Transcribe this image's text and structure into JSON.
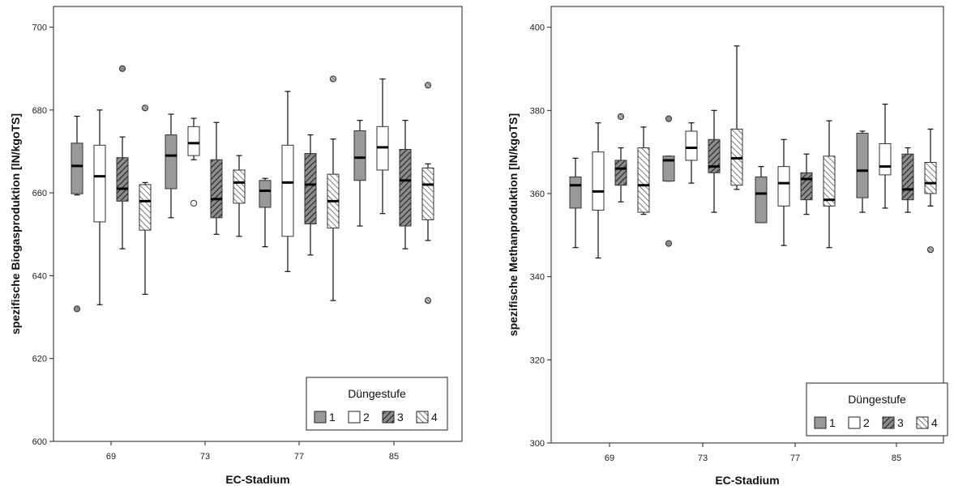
{
  "chart_data": [
    {
      "type": "boxplot",
      "xlabel": "EC-Stadium",
      "ylabel": "spezifische Biogasproduktion [lN/kgoTS]",
      "ylim": [
        600,
        705
      ],
      "yticks": [
        600,
        620,
        640,
        660,
        680,
        700
      ],
      "categories": [
        "69",
        "73",
        "77",
        "85"
      ],
      "legend": {
        "title": "Düngestufe",
        "position": "bottom-right",
        "entries": [
          "1",
          "2",
          "3",
          "4"
        ]
      },
      "series": [
        {
          "name": "1",
          "boxes": [
            {
              "min": 659.5,
              "q1": 659.8,
              "median": 666.5,
              "q3": 672,
              "max": 678.5,
              "outliers": [
                {
                  "v": 632,
                  "shape": "filled"
                }
              ]
            },
            {
              "min": 654,
              "q1": 661,
              "median": 669,
              "q3": 674,
              "max": 679,
              "outliers": []
            },
            {
              "min": 647,
              "q1": 656.5,
              "median": 660.5,
              "q3": 663,
              "max": 663.5,
              "outliers": []
            },
            {
              "min": 652,
              "q1": 663,
              "median": 668.5,
              "q3": 675,
              "max": 677.5,
              "outliers": []
            }
          ]
        },
        {
          "name": "2",
          "boxes": [
            {
              "min": 633,
              "q1": 653,
              "median": 664,
              "q3": 671.5,
              "max": 680,
              "outliers": []
            },
            {
              "min": 668,
              "q1": 669,
              "median": 672,
              "q3": 676,
              "max": 678,
              "outliers": [
                {
                  "v": 657.5,
                  "shape": "open"
                }
              ]
            },
            {
              "min": 641,
              "q1": 649.5,
              "median": 662.5,
              "q3": 671.5,
              "max": 684.5,
              "outliers": []
            },
            {
              "min": 655,
              "q1": 665.5,
              "median": 671,
              "q3": 676,
              "max": 687.5,
              "outliers": []
            }
          ]
        },
        {
          "name": "3",
          "boxes": [
            {
              "min": 646.5,
              "q1": 658,
              "median": 661,
              "q3": 668.5,
              "max": 673.5,
              "outliers": [
                {
                  "v": 690,
                  "shape": "filled"
                }
              ]
            },
            {
              "min": 650,
              "q1": 654,
              "median": 658.5,
              "q3": 668,
              "max": 677,
              "outliers": []
            },
            {
              "min": 645,
              "q1": 652.5,
              "median": 662,
              "q3": 669.5,
              "max": 674,
              "outliers": []
            },
            {
              "min": 646.5,
              "q1": 652,
              "median": 663,
              "q3": 670.5,
              "max": 677.5,
              "outliers": []
            }
          ]
        },
        {
          "name": "4",
          "boxes": [
            {
              "min": 635.5,
              "q1": 651,
              "median": 658,
              "q3": 662,
              "max": 662.5,
              "outliers": [
                {
                  "v": 680.5,
                  "shape": "hatched"
                }
              ]
            },
            {
              "min": 649.5,
              "q1": 657.5,
              "median": 662.5,
              "q3": 665.5,
              "max": 669,
              "outliers": []
            },
            {
              "min": 634,
              "q1": 651.5,
              "median": 658,
              "q3": 664.5,
              "max": 673,
              "outliers": [
                {
                  "v": 687.5,
                  "shape": "hatched"
                }
              ]
            },
            {
              "min": 648.5,
              "q1": 653.5,
              "median": 662,
              "q3": 666,
              "max": 667,
              "outliers": [
                {
                  "v": 686,
                  "shape": "hatched"
                },
                {
                  "v": 634,
                  "shape": "hatched"
                }
              ]
            }
          ]
        }
      ]
    },
    {
      "type": "boxplot",
      "xlabel": "EC-Stadium",
      "ylabel": "spezifische Methanproduktion [lN/kgoTS]",
      "ylim": [
        300,
        405
      ],
      "yticks": [
        300,
        320,
        340,
        360,
        380,
        400
      ],
      "categories": [
        "69",
        "73",
        "77",
        "85"
      ],
      "legend": {
        "title": "Düngestufe",
        "position": "bottom-right",
        "entries": [
          "1",
          "2",
          "3",
          "4"
        ]
      },
      "series": [
        {
          "name": "1",
          "boxes": [
            {
              "min": 347,
              "q1": 356.5,
              "median": 362,
              "q3": 364,
              "max": 368.5,
              "outliers": []
            },
            {
              "min": 363,
              "q1": 363,
              "median": 368,
              "q3": 369,
              "max": 369,
              "outliers": [
                {
                  "v": 378,
                  "shape": "filled"
                },
                {
                  "v": 348,
                  "shape": "filled"
                }
              ]
            },
            {
              "min": 353,
              "q1": 353,
              "median": 360,
              "q3": 364,
              "max": 366.5,
              "outliers": []
            },
            {
              "min": 355.5,
              "q1": 359,
              "median": 365.5,
              "q3": 374.5,
              "max": 375,
              "outliers": []
            }
          ]
        },
        {
          "name": "2",
          "boxes": [
            {
              "min": 344.5,
              "q1": 356,
              "median": 360.5,
              "q3": 370,
              "max": 377,
              "outliers": []
            },
            {
              "min": 362.5,
              "q1": 368,
              "median": 371,
              "q3": 375,
              "max": 377,
              "outliers": []
            },
            {
              "min": 347.5,
              "q1": 357,
              "median": 362.5,
              "q3": 366.5,
              "max": 373,
              "outliers": []
            },
            {
              "min": 356.5,
              "q1": 364.5,
              "median": 366.5,
              "q3": 372,
              "max": 381.5,
              "outliers": []
            }
          ]
        },
        {
          "name": "3",
          "boxes": [
            {
              "min": 358,
              "q1": 362,
              "median": 366,
              "q3": 368,
              "max": 371,
              "outliers": [
                {
                  "v": 378.5,
                  "shape": "hatched"
                }
              ]
            },
            {
              "min": 355.5,
              "q1": 365,
              "median": 366.5,
              "q3": 373,
              "max": 380,
              "outliers": []
            },
            {
              "min": 355,
              "q1": 358.5,
              "median": 363.5,
              "q3": 365,
              "max": 369.5,
              "outliers": []
            },
            {
              "min": 355.5,
              "q1": 358.5,
              "median": 361,
              "q3": 369.5,
              "max": 371,
              "outliers": []
            }
          ]
        },
        {
          "name": "4",
          "boxes": [
            {
              "min": 355,
              "q1": 355.5,
              "median": 362,
              "q3": 371,
              "max": 376,
              "outliers": []
            },
            {
              "min": 361,
              "q1": 362,
              "median": 368.5,
              "q3": 375.5,
              "max": 395.5,
              "outliers": []
            },
            {
              "min": 347,
              "q1": 357,
              "median": 358.5,
              "q3": 369,
              "max": 377.5,
              "outliers": []
            },
            {
              "min": 357,
              "q1": 360,
              "median": 362.5,
              "q3": 367.5,
              "max": 375.5,
              "outliers": [
                {
                  "v": 346.5,
                  "shape": "hatched"
                }
              ]
            }
          ]
        }
      ]
    }
  ],
  "styles": {
    "fill_1": "#999999",
    "fill_2": "#ffffff",
    "fill_3": "#8c8c8c",
    "fill_4": "#ffffff",
    "stroke": "#333333",
    "outlier_fill": "#8a8a8a"
  }
}
